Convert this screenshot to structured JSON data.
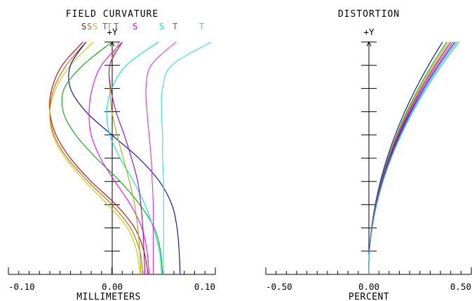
{
  "chart_data": [
    {
      "type": "line",
      "title": "FIELD CURVATURE",
      "xlabel": "MILLIMETERS",
      "ylabel": "+Y",
      "xlim": [
        -0.1,
        0.1
      ],
      "ylim": [
        0,
        1
      ],
      "xticks": [
        "-0.10",
        "0.00",
        "0.10"
      ],
      "legend_placement": "top",
      "legend": [
        {
          "label": "S",
          "color": "#cc0000"
        },
        {
          "label": "S",
          "color": "#cc6600"
        },
        {
          "label": "S",
          "color": "#c8c800"
        },
        {
          "label": "T",
          "color": "#00aa00"
        },
        {
          "label": "T",
          "color": "#aaaa00"
        },
        {
          "label": "T",
          "color": "#ff00ff"
        },
        {
          "label": "S",
          "color": "#ff00ff"
        },
        {
          "label": "S",
          "color": "#00e5e5"
        },
        {
          "label": "T",
          "color": "#ff00ff"
        },
        {
          "label": "T",
          "color": "#00e5e5"
        }
      ],
      "series": [
        {
          "color": "#cc0000",
          "y": [
            0,
            0.1,
            0.2,
            0.3,
            0.4,
            0.5,
            0.6,
            0.7,
            0.8,
            0.9,
            1.0
          ],
          "x": [
            0.035,
            0.031,
            0.022,
            0.004,
            -0.02,
            -0.04,
            -0.054,
            -0.06,
            -0.058,
            -0.048,
            -0.028
          ]
        },
        {
          "color": "#cc6600",
          "y": [
            0,
            0.1,
            0.2,
            0.3,
            0.4,
            0.5,
            0.6,
            0.7,
            0.8,
            0.9,
            1.0
          ],
          "x": [
            0.03,
            0.027,
            0.018,
            0.0,
            -0.023,
            -0.043,
            -0.056,
            -0.06,
            -0.056,
            -0.044,
            -0.025
          ]
        },
        {
          "color": "#c8c800",
          "y": [
            0,
            0.1,
            0.2,
            0.3,
            0.4,
            0.5,
            0.6,
            0.7,
            0.8,
            0.9,
            1.0
          ],
          "x": [
            0.027,
            0.024,
            0.015,
            -0.004,
            -0.026,
            -0.045,
            -0.057,
            -0.06,
            -0.054,
            -0.04,
            -0.018
          ]
        },
        {
          "color": "#0000cc",
          "y": [
            0,
            0.1,
            0.2,
            0.3,
            0.4,
            0.5,
            0.6,
            0.7,
            0.8,
            0.9,
            1.0
          ],
          "x": [
            0.066,
            0.065,
            0.063,
            0.058,
            0.046,
            0.026,
            0.0,
            -0.025,
            -0.04,
            -0.04,
            -0.025
          ]
        },
        {
          "color": "#00aa00",
          "y": [
            0,
            0.1,
            0.2,
            0.3,
            0.4,
            0.5,
            0.6,
            0.7,
            0.8,
            0.9,
            1.0
          ],
          "x": [
            0.049,
            0.047,
            0.041,
            0.027,
            0.008,
            -0.015,
            -0.035,
            -0.047,
            -0.046,
            -0.028,
            0.0
          ]
        },
        {
          "color": "#ff00ff",
          "y": [
            0,
            0.1,
            0.2,
            0.3,
            0.4,
            0.5,
            0.6,
            0.7,
            0.8,
            0.9,
            1.0
          ],
          "x": [
            0.036,
            0.034,
            0.029,
            0.018,
            0.003,
            -0.011,
            -0.02,
            -0.022,
            -0.019,
            -0.01,
            0.01
          ]
        },
        {
          "color": "#00e5e5",
          "y": [
            0,
            0.1,
            0.2,
            0.3,
            0.4,
            0.5,
            0.6,
            0.7,
            0.8,
            0.9,
            1.0
          ],
          "x": [
            0.048,
            0.046,
            0.04,
            0.032,
            0.021,
            0.008,
            -0.002,
            -0.005,
            0.0,
            0.014,
            0.045
          ]
        },
        {
          "color": "#aaaa00",
          "y": [
            0,
            0.1,
            0.2,
            0.3,
            0.4,
            0.5,
            0.6,
            0.7,
            0.8,
            0.9,
            1.0
          ],
          "x": [
            0.028,
            0.027,
            0.025,
            0.022,
            0.017,
            0.011,
            0.005,
            0.0,
            -0.002,
            -0.002,
            0.007
          ]
        },
        {
          "color": "#aa00aa",
          "y": [
            0,
            0.1,
            0.2,
            0.3,
            0.4,
            0.5,
            0.6,
            0.7,
            0.8,
            0.9,
            1.0
          ],
          "x": [
            0.032,
            0.031,
            0.03,
            0.028,
            0.025,
            0.019,
            0.012,
            0.004,
            -0.001,
            -0.002,
            0.01
          ]
        },
        {
          "color": "#dd33dd",
          "y": [
            0,
            0.1,
            0.2,
            0.3,
            0.4,
            0.5,
            0.6,
            0.7,
            0.8,
            0.9,
            1.0
          ],
          "x": [
            0.04,
            0.04,
            0.04,
            0.04,
            0.039,
            0.038,
            0.036,
            0.034,
            0.033,
            0.038,
            0.062
          ]
        },
        {
          "color": "#33dddd",
          "y": [
            0,
            0.1,
            0.2,
            0.3,
            0.4,
            0.5,
            0.6,
            0.7,
            0.8,
            0.9,
            1.0
          ],
          "x": [
            0.05,
            0.05,
            0.05,
            0.05,
            0.05,
            0.049,
            0.049,
            0.048,
            0.049,
            0.058,
            0.096
          ]
        }
      ]
    },
    {
      "type": "line",
      "title": "DISTORTION",
      "xlabel": "PERCENT",
      "ylabel": "+Y",
      "xlim": [
        -0.5,
        0.5
      ],
      "ylim": [
        0,
        1
      ],
      "xticks": [
        "-0.50",
        "0.00",
        "0.50"
      ],
      "series": [
        {
          "color": "#0000cc",
          "y": [
            0,
            0.1,
            0.2,
            0.3,
            0.4,
            0.5,
            0.6,
            0.7,
            0.8,
            0.9,
            1.0
          ],
          "x": [
            0,
            0.0036,
            0.0144,
            0.0324,
            0.0576,
            0.09,
            0.1296,
            0.1764,
            0.2304,
            0.2916,
            0.36
          ]
        },
        {
          "color": "#00aa00",
          "y": [
            0,
            0.1,
            0.2,
            0.3,
            0.4,
            0.5,
            0.6,
            0.7,
            0.8,
            0.9,
            1.0
          ],
          "x": [
            0,
            0.0038,
            0.0152,
            0.0342,
            0.0608,
            0.095,
            0.1368,
            0.1862,
            0.2432,
            0.3078,
            0.38
          ]
        },
        {
          "color": "#aaaa00",
          "y": [
            0,
            0.1,
            0.2,
            0.3,
            0.4,
            0.5,
            0.6,
            0.7,
            0.8,
            0.9,
            1.0
          ],
          "x": [
            0,
            0.0039,
            0.0156,
            0.0351,
            0.0624,
            0.0975,
            0.1404,
            0.1911,
            0.2496,
            0.3159,
            0.39
          ]
        },
        {
          "color": "#cc0000",
          "y": [
            0,
            0.1,
            0.2,
            0.3,
            0.4,
            0.5,
            0.6,
            0.7,
            0.8,
            0.9,
            1.0
          ],
          "x": [
            0,
            0.004,
            0.016,
            0.036,
            0.064,
            0.1,
            0.144,
            0.196,
            0.256,
            0.324,
            0.4
          ]
        },
        {
          "color": "#ff00ff",
          "y": [
            0,
            0.1,
            0.2,
            0.3,
            0.4,
            0.5,
            0.6,
            0.7,
            0.8,
            0.9,
            1.0
          ],
          "x": [
            0,
            0.0041,
            0.0164,
            0.0369,
            0.0656,
            0.1025,
            0.1476,
            0.2009,
            0.2624,
            0.3321,
            0.41
          ]
        },
        {
          "color": "#0000ff",
          "y": [
            0,
            0.1,
            0.2,
            0.3,
            0.4,
            0.5,
            0.6,
            0.7,
            0.8,
            0.9,
            1.0
          ],
          "x": [
            0,
            0.0042,
            0.0168,
            0.0378,
            0.0672,
            0.105,
            0.1512,
            0.2058,
            0.2688,
            0.3402,
            0.42
          ]
        },
        {
          "color": "#00cccc",
          "y": [
            0,
            0.1,
            0.2,
            0.3,
            0.4,
            0.5,
            0.6,
            0.7,
            0.8,
            0.9,
            1.0
          ],
          "x": [
            0,
            0.0043,
            0.0172,
            0.0387,
            0.0688,
            0.1075,
            0.1548,
            0.2107,
            0.2752,
            0.3483,
            0.43
          ]
        },
        {
          "color": "#44aaff",
          "y": [
            0,
            0.1,
            0.2,
            0.3,
            0.4,
            0.5,
            0.6,
            0.7,
            0.8,
            0.9,
            1.0
          ],
          "x": [
            0,
            0.0044,
            0.0176,
            0.0396,
            0.0704,
            0.11,
            0.1584,
            0.2156,
            0.2816,
            0.3564,
            0.44
          ]
        }
      ]
    }
  ]
}
